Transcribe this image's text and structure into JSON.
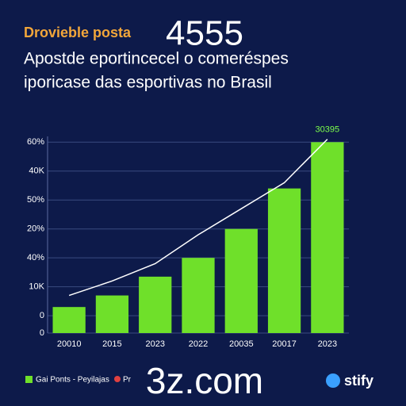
{
  "chart_data": {
    "type": "bar",
    "title": "Drovieble posta",
    "overlay_text": "4555",
    "subtitle_lines": [
      "Apostde eportincecel o comeréspes",
      "iporicase das esportivas no Brasil"
    ],
    "categories": [
      "20010",
      "2015",
      "2023",
      "2022",
      "20035",
      "20017",
      "2023"
    ],
    "series": [
      {
        "name": "Gai Ponts - Peyilajas",
        "type": "bar",
        "color": "#6fe02a",
        "values": [
          0.3,
          0.7,
          1.35,
          2.0,
          3.0,
          4.4,
          6.0
        ]
      },
      {
        "name": "Pr",
        "type": "line",
        "color": "#ffffff",
        "values": [
          0.7,
          1.2,
          1.8,
          2.8,
          3.7,
          4.6,
          6.1
        ]
      }
    ],
    "annotation": "30395",
    "ylim": [
      -0.6,
      6.2
    ],
    "yticks": [
      {
        "value": -0.6,
        "label": "0"
      },
      0,
      {
        "value": 1,
        "label": "10K"
      },
      {
        "value": 2,
        "label": "40%"
      },
      {
        "value": 3,
        "label": "20%"
      },
      {
        "value": 4,
        "label": "50%"
      },
      {
        "value": 5,
        "label": "40K"
      },
      {
        "value": 6,
        "label": "60%"
      }
    ],
    "grid": true,
    "legend": "bottom-left",
    "watermark": "3z.com",
    "logo": "stify"
  }
}
